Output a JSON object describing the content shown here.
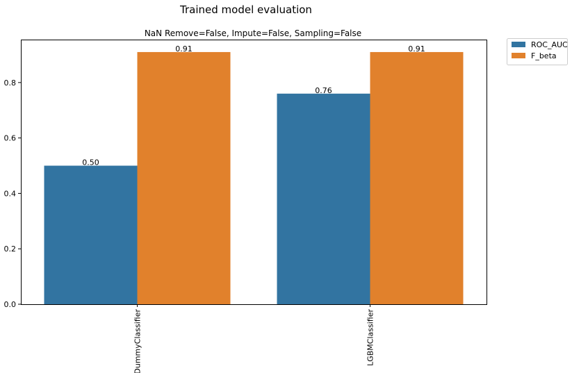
{
  "suptitle": "Trained model evaluation",
  "chart_data": {
    "type": "bar",
    "title": "NaN Remove=False, Impute=False, Sampling=False",
    "xlabel": "",
    "ylabel": "",
    "categories": [
      "DummyClassifier",
      "LGBMClassifier"
    ],
    "series": [
      {
        "name": "ROC_AUC",
        "values": [
          0.5,
          0.76
        ],
        "color": "#3274a1",
        "labels": [
          "0.50",
          "0.76"
        ]
      },
      {
        "name": "F_beta",
        "values": [
          0.91,
          0.91
        ],
        "color": "#e1812c",
        "labels": [
          "0.91",
          "0.91"
        ]
      }
    ],
    "ylim": [
      0,
      0.955
    ],
    "yticks": [
      0.0,
      0.2,
      0.4,
      0.6,
      0.8
    ],
    "ytick_labels": [
      "0.0",
      "0.2",
      "0.4",
      "0.6",
      "0.8"
    ],
    "grid": false,
    "legend_position": "outside-top-right"
  }
}
